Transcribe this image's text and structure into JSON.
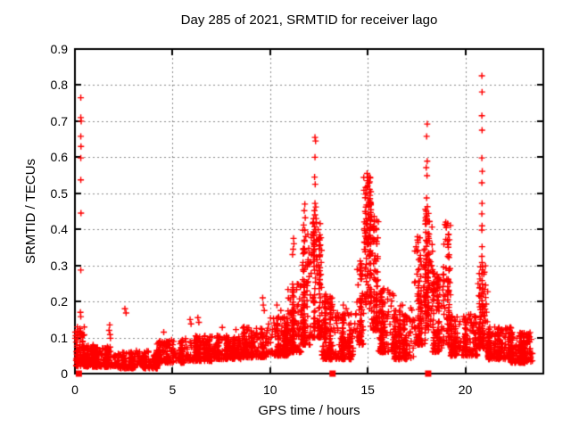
{
  "chart_data": {
    "type": "scatter",
    "title": "Day 285 of 2021, SRMTID for receiver lago",
    "xlabel": "GPS time / hours",
    "ylabel": "SRMTID / TECUs",
    "xlim": [
      0,
      24
    ],
    "ylim": [
      0,
      0.9
    ],
    "grid": true,
    "legend": "none",
    "colors": {
      "points": "#ff0000",
      "grid": "#8c8c8c",
      "border": "#000000",
      "background": "#ffffff"
    },
    "axes": {
      "x_ticks": [
        {
          "v": 0,
          "label": "0"
        },
        {
          "v": 5,
          "label": "5"
        },
        {
          "v": 10,
          "label": "10"
        },
        {
          "v": 15,
          "label": "15"
        },
        {
          "v": 20,
          "label": "20"
        }
      ],
      "y_ticks": [
        {
          "v": 0.0,
          "label": "0"
        },
        {
          "v": 0.1,
          "label": "0.1"
        },
        {
          "v": 0.2,
          "label": "0.2"
        },
        {
          "v": 0.3,
          "label": "0.3"
        },
        {
          "v": 0.4,
          "label": "0.4"
        },
        {
          "v": 0.5,
          "label": "0.5"
        },
        {
          "v": 0.6,
          "label": "0.6"
        },
        {
          "v": 0.7,
          "label": "0.7"
        },
        {
          "v": 0.8,
          "label": "0.8"
        },
        {
          "v": 0.9,
          "label": "0.9"
        }
      ]
    },
    "series": [
      {
        "name": "srmtid-points",
        "marker": "plus",
        "band_fields": [
          "x_start_h",
          "x_end_h",
          "count",
          "y_min",
          "y_max",
          "bottom_bias"
        ],
        "cluster_bands": [
          [
            0.05,
            0.5,
            70,
            0.02,
            0.13,
            1.3
          ],
          [
            0.4,
            1.1,
            130,
            0.02,
            0.08,
            1.6
          ],
          [
            1.1,
            2.2,
            160,
            0.018,
            0.075,
            1.6
          ],
          [
            2.2,
            3.1,
            120,
            0.015,
            0.06,
            1.5
          ],
          [
            3.1,
            4.2,
            140,
            0.015,
            0.065,
            1.5
          ],
          [
            4.2,
            5.6,
            170,
            0.03,
            0.095,
            1.6
          ],
          [
            5.6,
            7.1,
            190,
            0.035,
            0.105,
            1.6
          ],
          [
            7.1,
            8.6,
            190,
            0.04,
            0.105,
            1.6
          ],
          [
            8.6,
            9.9,
            180,
            0.045,
            0.13,
            1.7
          ],
          [
            9.9,
            10.9,
            160,
            0.05,
            0.16,
            1.8
          ],
          [
            10.9,
            11.6,
            140,
            0.06,
            0.25,
            2.0
          ],
          [
            11.6,
            12.05,
            115,
            0.08,
            0.4,
            1.8
          ],
          [
            12.05,
            12.65,
            135,
            0.1,
            0.43,
            1.8
          ],
          [
            12.65,
            13.35,
            130,
            0.04,
            0.22,
            2.0
          ],
          [
            13.35,
            14.45,
            160,
            0.04,
            0.17,
            1.9
          ],
          [
            14.45,
            14.8,
            70,
            0.08,
            0.32,
            1.5
          ],
          [
            14.8,
            15.15,
            110,
            0.18,
            0.545,
            1.1
          ],
          [
            15.15,
            15.55,
            90,
            0.12,
            0.44,
            1.5
          ],
          [
            15.55,
            16.4,
            150,
            0.06,
            0.24,
            2.0
          ],
          [
            16.4,
            17.4,
            150,
            0.04,
            0.19,
            1.9
          ],
          [
            17.4,
            17.95,
            100,
            0.08,
            0.38,
            1.7
          ],
          [
            17.95,
            18.35,
            105,
            0.12,
            0.47,
            1.3
          ],
          [
            18.35,
            18.85,
            100,
            0.06,
            0.3,
            1.7
          ],
          [
            18.85,
            19.25,
            80,
            0.08,
            0.42,
            1.5
          ],
          [
            19.25,
            20.65,
            180,
            0.05,
            0.165,
            1.8
          ],
          [
            20.65,
            21.15,
            90,
            0.07,
            0.3,
            1.6
          ],
          [
            21.15,
            22.35,
            210,
            0.04,
            0.13,
            1.7
          ],
          [
            22.35,
            23.45,
            200,
            0.03,
            0.115,
            1.7
          ]
        ],
        "outliers": [
          [
            0.3,
            0.765
          ],
          [
            0.3,
            0.71
          ],
          [
            0.32,
            0.7
          ],
          [
            0.3,
            0.658
          ],
          [
            0.31,
            0.63
          ],
          [
            0.3,
            0.598
          ],
          [
            0.3,
            0.537
          ],
          [
            0.31,
            0.445
          ],
          [
            0.3,
            0.287
          ],
          [
            0.28,
            0.17
          ],
          [
            0.3,
            0.158
          ],
          [
            0.02,
            0.115
          ],
          [
            0.04,
            0.105
          ],
          [
            0.02,
            0.098
          ],
          [
            0.26,
            0.125
          ],
          [
            0.34,
            0.11
          ],
          [
            1.78,
            0.135
          ],
          [
            1.75,
            0.12
          ],
          [
            1.8,
            0.108
          ],
          [
            1.82,
            0.098
          ],
          [
            2.56,
            0.18
          ],
          [
            2.62,
            0.168
          ],
          [
            4.55,
            0.115
          ],
          [
            5.9,
            0.15
          ],
          [
            5.95,
            0.138
          ],
          [
            6.3,
            0.155
          ],
          [
            6.35,
            0.142
          ],
          [
            7.55,
            0.128
          ],
          [
            8.25,
            0.122
          ],
          [
            9.62,
            0.21
          ],
          [
            9.65,
            0.19
          ],
          [
            9.7,
            0.175
          ],
          [
            10.35,
            0.19
          ],
          [
            10.55,
            0.175
          ],
          [
            11.2,
            0.375
          ],
          [
            11.22,
            0.36
          ],
          [
            11.18,
            0.345
          ],
          [
            11.15,
            0.33
          ],
          [
            11.78,
            0.47
          ],
          [
            11.75,
            0.452
          ],
          [
            11.8,
            0.432
          ],
          [
            11.72,
            0.412
          ],
          [
            11.78,
            0.398
          ],
          [
            12.3,
            0.655
          ],
          [
            12.33,
            0.645
          ],
          [
            12.3,
            0.6
          ],
          [
            12.28,
            0.545
          ],
          [
            12.31,
            0.525
          ],
          [
            12.3,
            0.472
          ],
          [
            12.34,
            0.462
          ],
          [
            12.27,
            0.452
          ],
          [
            12.3,
            0.44
          ],
          [
            12.36,
            0.43
          ],
          [
            12.05,
            0.31
          ],
          [
            13.75,
            0.19
          ],
          [
            13.9,
            0.18
          ],
          [
            14.97,
            0.555
          ],
          [
            15.02,
            0.545
          ],
          [
            18.05,
            0.692
          ],
          [
            18.02,
            0.658
          ],
          [
            18.05,
            0.589
          ],
          [
            18.0,
            0.571
          ],
          [
            18.04,
            0.549
          ],
          [
            18.02,
            0.487
          ],
          [
            18.06,
            0.463
          ],
          [
            18.0,
            0.443
          ],
          [
            17.96,
            0.423
          ],
          [
            19.0,
            0.42
          ],
          [
            19.03,
            0.405
          ],
          [
            20.85,
            0.826
          ],
          [
            20.86,
            0.781
          ],
          [
            20.85,
            0.715
          ],
          [
            20.86,
            0.675
          ],
          [
            20.85,
            0.598
          ],
          [
            20.87,
            0.561
          ],
          [
            20.85,
            0.529
          ],
          [
            20.86,
            0.472
          ],
          [
            20.85,
            0.443
          ],
          [
            20.86,
            0.41
          ],
          [
            20.85,
            0.398
          ],
          [
            20.86,
            0.352
          ],
          [
            20.85,
            0.325
          ],
          [
            20.86,
            0.308
          ],
          [
            20.85,
            0.276
          ],
          [
            20.86,
            0.258
          ],
          [
            20.85,
            0.225
          ],
          [
            20.86,
            0.202
          ],
          [
            20.85,
            0.185
          ],
          [
            20.86,
            0.17
          ],
          [
            23.3,
            0.102
          ],
          [
            23.38,
            0.095
          ]
        ]
      },
      {
        "name": "baseline-squares",
        "marker": "square",
        "points": [
          [
            0.2,
            0
          ],
          [
            13.2,
            0
          ],
          [
            18.1,
            0
          ]
        ]
      }
    ]
  }
}
